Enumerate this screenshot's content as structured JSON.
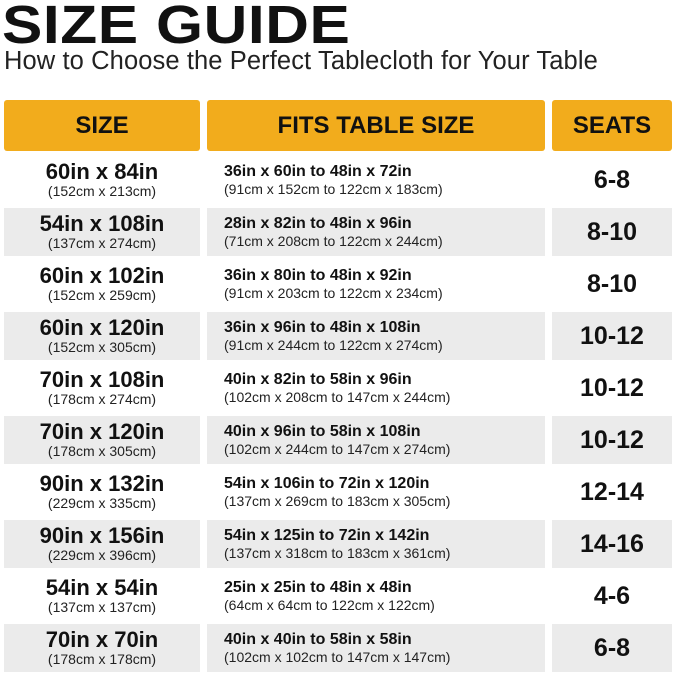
{
  "title": "SIZE GUIDE",
  "subtitle": "How to Choose the Perfect Tablecloth for Your Table",
  "accent_color": "#f2ac1c",
  "headers": {
    "size": "SIZE",
    "fits": "FITS TABLE SIZE",
    "seats": "SEATS"
  },
  "rows": [
    {
      "size": "60in x 84in",
      "size_cm": "(152cm x 213cm)",
      "fits": "36in x 60in to 48in x 72in",
      "fits_cm": "(91cm x 152cm to 122cm x 183cm)",
      "seats": "6-8"
    },
    {
      "size": "54in x 108in",
      "size_cm": "(137cm x 274cm)",
      "fits": "28in x 82in to 48in x 96in",
      "fits_cm": "(71cm x 208cm to 122cm x 244cm)",
      "seats": "8-10"
    },
    {
      "size": "60in x 102in",
      "size_cm": "(152cm x 259cm)",
      "fits": "36in x 80in to 48in x 92in",
      "fits_cm": "(91cm x 203cm to 122cm x 234cm)",
      "seats": "8-10"
    },
    {
      "size": "60in x 120in",
      "size_cm": "(152cm x 305cm)",
      "fits": "36in x 96in to 48in x 108in",
      "fits_cm": "(91cm x 244cm to 122cm x 274cm)",
      "seats": "10-12"
    },
    {
      "size": "70in x 108in",
      "size_cm": "(178cm x 274cm)",
      "fits": "40in x 82in to 58in x 96in",
      "fits_cm": "(102cm x 208cm to 147cm x 244cm)",
      "seats": "10-12"
    },
    {
      "size": "70in x 120in",
      "size_cm": "(178cm x 305cm)",
      "fits": "40in x 96in to 58in x 108in",
      "fits_cm": "(102cm x 244cm to 147cm x 274cm)",
      "seats": "10-12"
    },
    {
      "size": "90in x 132in",
      "size_cm": "(229cm x 335cm)",
      "fits": "54in x 106in to 72in x 120in",
      "fits_cm": "(137cm x 269cm to 183cm x 305cm)",
      "seats": "12-14"
    },
    {
      "size": "90in x 156in",
      "size_cm": "(229cm x 396cm)",
      "fits": "54in x 125in to 72in x 142in",
      "fits_cm": "(137cm x 318cm to 183cm x 361cm)",
      "seats": "14-16"
    },
    {
      "size": "54in x 54in",
      "size_cm": "(137cm x 137cm)",
      "fits": "25in x 25in to 48in x 48in",
      "fits_cm": "(64cm x 64cm to 122cm x 122cm)",
      "seats": "4-6"
    },
    {
      "size": "70in x 70in",
      "size_cm": "(178cm x 178cm)",
      "fits": "40in x 40in to 58in x 58in",
      "fits_cm": "(102cm x 102cm to 147cm x 147cm)",
      "seats": "6-8"
    }
  ]
}
